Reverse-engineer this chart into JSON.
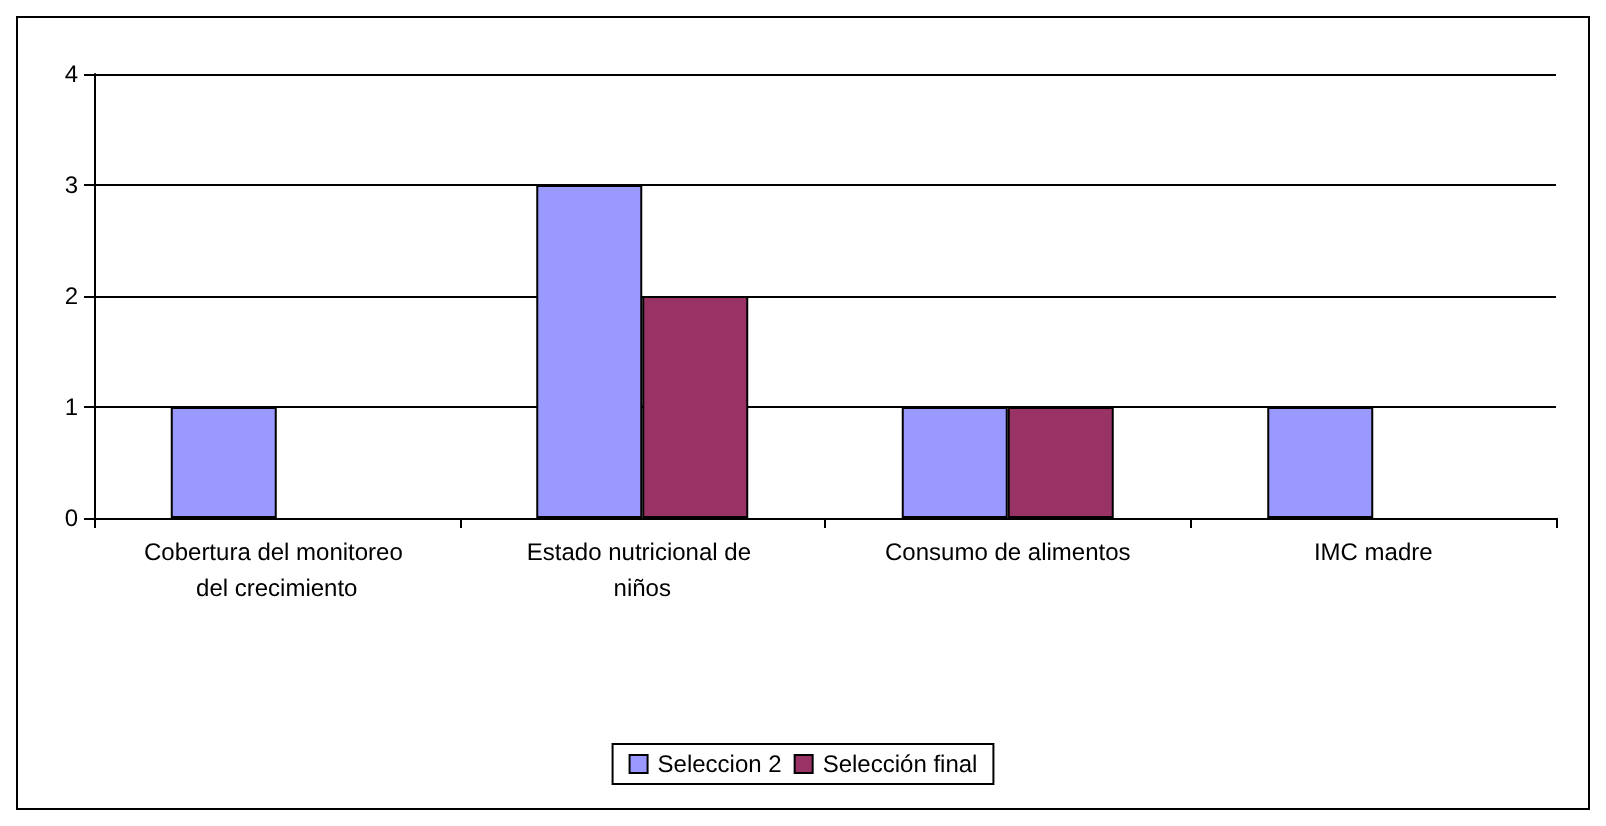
{
  "chart_data": {
    "type": "bar",
    "categories": [
      "Cobertura del monitoreo del crecimiento",
      "Estado nutricional de niños",
      "Consumo de alimentos",
      "IMC madre"
    ],
    "series": [
      {
        "name": "Seleccion 2",
        "color": "#9999ff",
        "values": [
          1,
          3,
          1,
          1
        ]
      },
      {
        "name": "Selección final",
        "color": "#993366",
        "values": [
          null,
          2,
          1,
          null
        ]
      }
    ],
    "ylim": [
      0,
      4
    ],
    "yticks": [
      0,
      1,
      2,
      3,
      4
    ],
    "grid": "y",
    "legend": "bottom"
  }
}
